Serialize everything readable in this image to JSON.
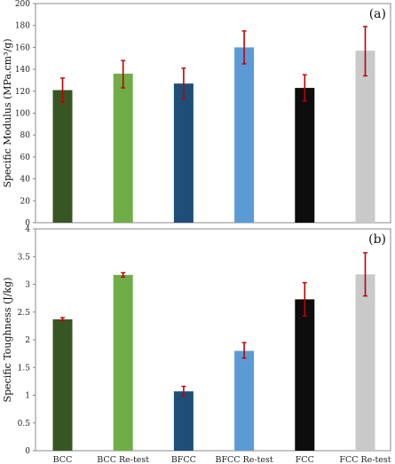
{
  "chart_data": [
    {
      "type": "bar",
      "panel_label": "(a)",
      "ylabel": "Specific Modulus (MPa.cm³/g)",
      "ylim": [
        0,
        200
      ],
      "yticks": [
        0,
        20,
        40,
        60,
        80,
        100,
        120,
        140,
        160,
        180,
        200
      ],
      "categories": [
        "BCC",
        "BCC Re-test",
        "BFCC",
        "BFCC Re-test",
        "FCC",
        "FCC Re-test"
      ],
      "values": [
        121,
        136,
        127,
        160,
        123,
        157
      ],
      "error_low": [
        110,
        123,
        113,
        145,
        111,
        134
      ],
      "error_high": [
        132,
        148,
        141,
        175,
        135,
        179
      ],
      "colors": [
        "#375623",
        "#70ad47",
        "#1f4e79",
        "#5b9bd5",
        "#0d0d0d",
        "#c9c9c9"
      ],
      "grid": false
    },
    {
      "type": "bar",
      "panel_label": "(b)",
      "ylabel": "Specific Toughness (J/kg)",
      "ylim": [
        0,
        4
      ],
      "yticks": [
        0,
        0.5,
        1,
        1.5,
        2,
        2.5,
        3,
        3.5,
        4
      ],
      "ytick_labels": [
        "0",
        "0.5",
        "1",
        "1.5",
        "2",
        "2.5",
        "3",
        "3.5",
        "4"
      ],
      "categories": [
        "BCC",
        "BCC Re-test",
        "BFCC",
        "BFCC Re-test",
        "FCC",
        "FCC Re-test"
      ],
      "values": [
        2.37,
        3.17,
        1.07,
        1.8,
        2.73,
        3.18
      ],
      "error_low": [
        2.35,
        3.13,
        0.99,
        1.67,
        2.43,
        2.79
      ],
      "error_high": [
        2.4,
        3.21,
        1.16,
        1.95,
        3.03,
        3.57
      ],
      "colors": [
        "#375623",
        "#70ad47",
        "#1f4e79",
        "#5b9bd5",
        "#0d0d0d",
        "#c9c9c9"
      ],
      "grid": false
    }
  ],
  "error_bar_color": "#c00000"
}
